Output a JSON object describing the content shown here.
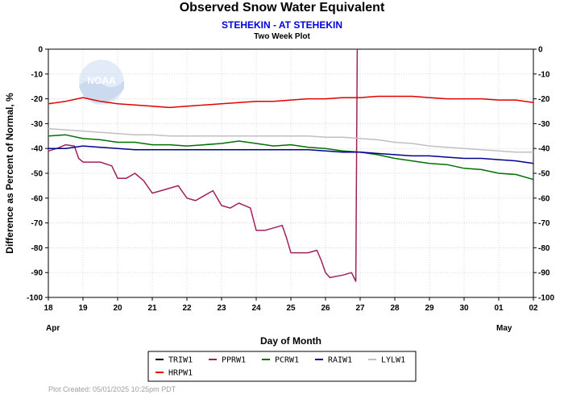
{
  "chart_data": {
    "type": "line",
    "title": "Observed Snow Water Equivalent",
    "subtitle": "STEHEKIN - AT STEHEKIN",
    "subsubtitle": "Two Week Plot",
    "xlabel": "Day of Month",
    "ylabel": "Difference as Percent of Normal, %",
    "xlim": [
      "2025-04-18",
      "2025-05-02"
    ],
    "ylim": [
      -100,
      0
    ],
    "y_ticks": [
      0,
      -10,
      -20,
      -30,
      -40,
      -50,
      -60,
      -70,
      -80,
      -90,
      -100
    ],
    "x_ticks": [
      {
        "x": "2025-04-18",
        "label": "18"
      },
      {
        "x": "2025-04-19",
        "label": "19"
      },
      {
        "x": "2025-04-20",
        "label": "20"
      },
      {
        "x": "2025-04-21",
        "label": "21"
      },
      {
        "x": "2025-04-22",
        "label": "22"
      },
      {
        "x": "2025-04-23",
        "label": "23"
      },
      {
        "x": "2025-04-24",
        "label": "24"
      },
      {
        "x": "2025-04-25",
        "label": "25"
      },
      {
        "x": "2025-04-26",
        "label": "26"
      },
      {
        "x": "2025-04-27",
        "label": "27"
      },
      {
        "x": "2025-04-28",
        "label": "28"
      },
      {
        "x": "2025-04-29",
        "label": "29"
      },
      {
        "x": "2025-04-30",
        "label": "30"
      },
      {
        "x": "2025-05-01",
        "label": "01"
      },
      {
        "x": "2025-05-02",
        "label": "02"
      }
    ],
    "month_labels": [
      {
        "x": "2025-04-18",
        "label": "Apr"
      },
      {
        "x": "2025-05-01",
        "label": "May"
      }
    ],
    "grid": true,
    "legend_position": "bottom",
    "series": [
      {
        "name": "TRIW1",
        "color": "#000000",
        "points": []
      },
      {
        "name": "PPRW1",
        "color": "#a0205a",
        "points": [
          [
            "2025-04-18 00:00",
            -41
          ],
          [
            "2025-04-18 06:00",
            -40
          ],
          [
            "2025-04-18 12:00",
            -38.5
          ],
          [
            "2025-04-18 18:00",
            -39
          ],
          [
            "2025-04-18 21:00",
            -44
          ],
          [
            "2025-04-19 00:00",
            -45.5
          ],
          [
            "2025-04-19 12:00",
            -45.5
          ],
          [
            "2025-04-19 20:00",
            -47
          ],
          [
            "2025-04-20 00:00",
            -52
          ],
          [
            "2025-04-20 06:00",
            -52
          ],
          [
            "2025-04-20 12:00",
            -50
          ],
          [
            "2025-04-20 18:00",
            -53
          ],
          [
            "2025-04-21 00:00",
            -58
          ],
          [
            "2025-04-21 06:00",
            -57
          ],
          [
            "2025-04-21 12:00",
            -56
          ],
          [
            "2025-04-21 18:00",
            -55
          ],
          [
            "2025-04-22 00:00",
            -60
          ],
          [
            "2025-04-22 06:00",
            -61
          ],
          [
            "2025-04-22 12:00",
            -59
          ],
          [
            "2025-04-22 18:00",
            -57
          ],
          [
            "2025-04-23 00:00",
            -63
          ],
          [
            "2025-04-23 06:00",
            -64
          ],
          [
            "2025-04-23 12:00",
            -62
          ],
          [
            "2025-04-23 20:00",
            -64
          ],
          [
            "2025-04-24 00:00",
            -73
          ],
          [
            "2025-04-24 06:00",
            -73
          ],
          [
            "2025-04-24 12:00",
            -72
          ],
          [
            "2025-04-24 18:00",
            -71
          ],
          [
            "2025-04-24 21:00",
            -76
          ],
          [
            "2025-04-25 00:00",
            -82
          ],
          [
            "2025-04-25 06:00",
            -82
          ],
          [
            "2025-04-25 12:00",
            -82
          ],
          [
            "2025-04-25 18:00",
            -81
          ],
          [
            "2025-04-25 21:00",
            -85
          ],
          [
            "2025-04-26 00:00",
            -90
          ],
          [
            "2025-04-26 03:00",
            -92
          ],
          [
            "2025-04-26 12:00",
            -91
          ],
          [
            "2025-04-26 18:00",
            -90
          ],
          [
            "2025-04-26 21:00",
            -93.5
          ],
          [
            "2025-04-26 22:00",
            0
          ]
        ]
      },
      {
        "name": "PCRW1",
        "color": "#007000",
        "points": [
          [
            "2025-04-18 00:00",
            -35
          ],
          [
            "2025-04-18 12:00",
            -34.5
          ],
          [
            "2025-04-19 00:00",
            -36
          ],
          [
            "2025-04-19 12:00",
            -36.5
          ],
          [
            "2025-04-20 00:00",
            -37.5
          ],
          [
            "2025-04-20 12:00",
            -37.5
          ],
          [
            "2025-04-21 00:00",
            -38.5
          ],
          [
            "2025-04-21 12:00",
            -38.5
          ],
          [
            "2025-04-22 00:00",
            -39
          ],
          [
            "2025-04-22 12:00",
            -38.5
          ],
          [
            "2025-04-23 00:00",
            -38
          ],
          [
            "2025-04-23 12:00",
            -37
          ],
          [
            "2025-04-24 00:00",
            -38
          ],
          [
            "2025-04-24 12:00",
            -39
          ],
          [
            "2025-04-25 00:00",
            -38.5
          ],
          [
            "2025-04-25 12:00",
            -39.5
          ],
          [
            "2025-04-26 00:00",
            -40
          ],
          [
            "2025-04-26 12:00",
            -41
          ],
          [
            "2025-04-27 00:00",
            -41.5
          ],
          [
            "2025-04-27 12:00",
            -42.5
          ],
          [
            "2025-04-28 00:00",
            -44
          ],
          [
            "2025-04-28 12:00",
            -45
          ],
          [
            "2025-04-29 00:00",
            -46
          ],
          [
            "2025-04-29 12:00",
            -46.5
          ],
          [
            "2025-04-30 00:00",
            -48
          ],
          [
            "2025-04-30 12:00",
            -48.5
          ],
          [
            "2025-05-01 00:00",
            -50
          ],
          [
            "2025-05-01 12:00",
            -50.5
          ],
          [
            "2025-05-02 00:00",
            -52.5
          ]
        ]
      },
      {
        "name": "RAIW1",
        "color": "#000090",
        "points": [
          [
            "2025-04-18 00:00",
            -40
          ],
          [
            "2025-04-18 12:00",
            -40
          ],
          [
            "2025-04-19 00:00",
            -39
          ],
          [
            "2025-04-19 12:00",
            -39.5
          ],
          [
            "2025-04-20 00:00",
            -40
          ],
          [
            "2025-04-20 12:00",
            -40.5
          ],
          [
            "2025-04-21 00:00",
            -40.5
          ],
          [
            "2025-04-21 12:00",
            -40.5
          ],
          [
            "2025-04-22 00:00",
            -40.5
          ],
          [
            "2025-04-22 12:00",
            -40.5
          ],
          [
            "2025-04-23 00:00",
            -40.5
          ],
          [
            "2025-04-23 12:00",
            -40.5
          ],
          [
            "2025-04-24 00:00",
            -40.5
          ],
          [
            "2025-04-24 12:00",
            -40.5
          ],
          [
            "2025-04-25 00:00",
            -40.5
          ],
          [
            "2025-04-25 12:00",
            -40.5
          ],
          [
            "2025-04-26 00:00",
            -41
          ],
          [
            "2025-04-26 12:00",
            -41.5
          ],
          [
            "2025-04-27 00:00",
            -41.5
          ],
          [
            "2025-04-27 12:00",
            -42
          ],
          [
            "2025-04-28 00:00",
            -42.5
          ],
          [
            "2025-04-28 12:00",
            -43
          ],
          [
            "2025-04-29 00:00",
            -43
          ],
          [
            "2025-04-29 12:00",
            -43.5
          ],
          [
            "2025-04-30 00:00",
            -44
          ],
          [
            "2025-04-30 12:00",
            -44
          ],
          [
            "2025-05-01 00:00",
            -44.5
          ],
          [
            "2025-05-01 12:00",
            -45
          ],
          [
            "2025-05-02 00:00",
            -46
          ]
        ]
      },
      {
        "name": "LYLW1",
        "color": "#c0c0c0",
        "points": [
          [
            "2025-04-18 00:00",
            -32
          ],
          [
            "2025-04-18 12:00",
            -32.5
          ],
          [
            "2025-04-19 00:00",
            -33
          ],
          [
            "2025-04-19 12:00",
            -33.5
          ],
          [
            "2025-04-20 00:00",
            -34
          ],
          [
            "2025-04-20 12:00",
            -34.5
          ],
          [
            "2025-04-21 00:00",
            -34.5
          ],
          [
            "2025-04-21 12:00",
            -35
          ],
          [
            "2025-04-22 00:00",
            -35
          ],
          [
            "2025-04-22 12:00",
            -35
          ],
          [
            "2025-04-23 00:00",
            -35
          ],
          [
            "2025-04-23 12:00",
            -35
          ],
          [
            "2025-04-24 00:00",
            -35
          ],
          [
            "2025-04-24 12:00",
            -35
          ],
          [
            "2025-04-25 00:00",
            -35
          ],
          [
            "2025-04-25 12:00",
            -35
          ],
          [
            "2025-04-26 00:00",
            -35.5
          ],
          [
            "2025-04-26 12:00",
            -35.5
          ],
          [
            "2025-04-27 00:00",
            -36
          ],
          [
            "2025-04-27 12:00",
            -36.5
          ],
          [
            "2025-04-28 00:00",
            -37.5
          ],
          [
            "2025-04-28 12:00",
            -38
          ],
          [
            "2025-04-29 00:00",
            -39
          ],
          [
            "2025-04-29 12:00",
            -39.5
          ],
          [
            "2025-04-30 00:00",
            -40
          ],
          [
            "2025-04-30 12:00",
            -40.5
          ],
          [
            "2025-05-01 00:00",
            -41
          ],
          [
            "2025-05-01 12:00",
            -41.5
          ],
          [
            "2025-05-02 00:00",
            -41.5
          ]
        ]
      },
      {
        "name": "HRPW1",
        "color": "#e00000",
        "points": [
          [
            "2025-04-18 00:00",
            -22
          ],
          [
            "2025-04-18 12:00",
            -21
          ],
          [
            "2025-04-19 00:00",
            -19.5
          ],
          [
            "2025-04-19 12:00",
            -21
          ],
          [
            "2025-04-20 00:00",
            -22
          ],
          [
            "2025-04-20 12:00",
            -22.5
          ],
          [
            "2025-04-21 00:00",
            -23
          ],
          [
            "2025-04-21 12:00",
            -23.5
          ],
          [
            "2025-04-22 00:00",
            -23
          ],
          [
            "2025-04-22 12:00",
            -22.5
          ],
          [
            "2025-04-23 00:00",
            -22
          ],
          [
            "2025-04-23 12:00",
            -21.5
          ],
          [
            "2025-04-24 00:00",
            -21
          ],
          [
            "2025-04-24 12:00",
            -21
          ],
          [
            "2025-04-25 00:00",
            -20.5
          ],
          [
            "2025-04-25 12:00",
            -20
          ],
          [
            "2025-04-26 00:00",
            -20
          ],
          [
            "2025-04-26 12:00",
            -19.5
          ],
          [
            "2025-04-27 00:00",
            -19.5
          ],
          [
            "2025-04-27 12:00",
            -19
          ],
          [
            "2025-04-28 00:00",
            -19
          ],
          [
            "2025-04-28 12:00",
            -19
          ],
          [
            "2025-04-29 00:00",
            -19.5
          ],
          [
            "2025-04-29 12:00",
            -20
          ],
          [
            "2025-04-30 00:00",
            -20
          ],
          [
            "2025-04-30 12:00",
            -20
          ],
          [
            "2025-05-01 00:00",
            -20.5
          ],
          [
            "2025-05-01 12:00",
            -20.5
          ],
          [
            "2025-05-02 00:00",
            -21.5
          ]
        ]
      }
    ]
  },
  "watermark_text": "NOAA",
  "footer": "Plot Created: 05/01/2025 10:25pm PDT"
}
